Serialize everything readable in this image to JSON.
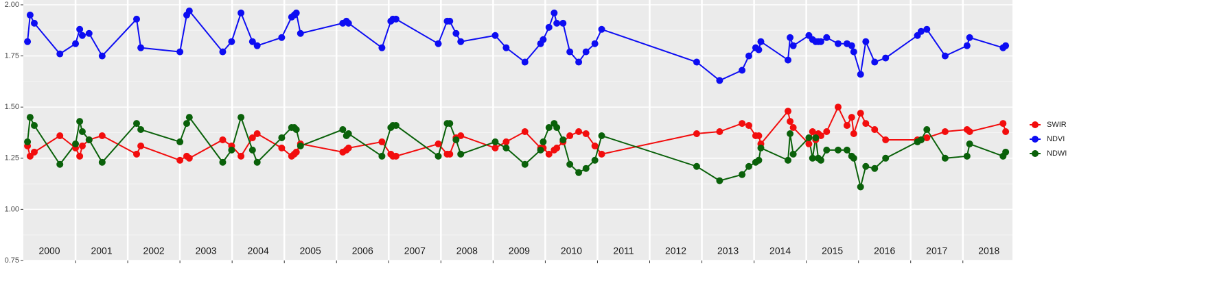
{
  "chart_data": {
    "type": "line",
    "xlim": [
      2000,
      2018.95
    ],
    "ylim": [
      0.75,
      2.0
    ],
    "yticks": [
      {
        "value": 0.75,
        "label": "0.75"
      },
      {
        "value": 1,
        "label": "1.00"
      },
      {
        "value": 1.25,
        "label": "1.25"
      },
      {
        "value": 1.5,
        "label": "1.50"
      },
      {
        "value": 1.75,
        "label": "1.75"
      },
      {
        "value": 2,
        "label": "2.00"
      }
    ],
    "xticks": [
      {
        "value": 2000.5,
        "label": "2000"
      },
      {
        "value": 2001.5,
        "label": "2001"
      },
      {
        "value": 2002.5,
        "label": "2002"
      },
      {
        "value": 2003.5,
        "label": "2003"
      },
      {
        "value": 2004.5,
        "label": "2004"
      },
      {
        "value": 2005.5,
        "label": "2005"
      },
      {
        "value": 2006.5,
        "label": "2006"
      },
      {
        "value": 2007.5,
        "label": "2007"
      },
      {
        "value": 2008.5,
        "label": "2008"
      },
      {
        "value": 2009.5,
        "label": "2009"
      },
      {
        "value": 2010.5,
        "label": "2010"
      },
      {
        "value": 2011.5,
        "label": "2011"
      },
      {
        "value": 2012.5,
        "label": "2012"
      },
      {
        "value": 2013.5,
        "label": "2013"
      },
      {
        "value": 2014.5,
        "label": "2014"
      },
      {
        "value": 2015.5,
        "label": "2015"
      },
      {
        "value": 2016.5,
        "label": "2016"
      },
      {
        "value": 2017.5,
        "label": "2017"
      },
      {
        "value": 2018.5,
        "label": "2018"
      }
    ],
    "year_breaks": [
      2001,
      2002,
      2003,
      2004,
      2005,
      2006,
      2007,
      2008,
      2009,
      2010,
      2011,
      2012,
      2013,
      2014,
      2015,
      2016,
      2017,
      2018
    ],
    "grid": true,
    "legend": "right",
    "x": [
      2000.08,
      2000.13,
      2000.21,
      2000.7,
      2001.0,
      2001.08,
      2001.13,
      2001.26,
      2001.51,
      2002.17,
      2002.25,
      2003.0,
      2003.13,
      2003.18,
      2003.82,
      2003.99,
      2004.17,
      2004.39,
      2004.48,
      2004.95,
      2005.14,
      2005.19,
      2005.23,
      2005.31,
      2006.12,
      2006.19,
      2006.23,
      2006.87,
      2007.04,
      2007.08,
      2007.14,
      2007.95,
      2008.12,
      2008.17,
      2008.29,
      2008.38,
      2009.04,
      2009.25,
      2009.61,
      2009.91,
      2009.96,
      2010.07,
      2010.17,
      2010.22,
      2010.34,
      2010.47,
      2010.64,
      2010.78,
      2010.95,
      2011.08,
      2012.9,
      2013.34,
      2013.77,
      2013.9,
      2014.03,
      2014.09,
      2014.13,
      2014.65,
      2014.69,
      2014.75,
      2015.05,
      2015.12,
      2015.18,
      2015.23,
      2015.28,
      2015.39,
      2015.61,
      2015.78,
      2015.87,
      2015.91,
      2016.04,
      2016.14,
      2016.31,
      2016.52,
      2017.13,
      2017.2,
      2017.31,
      2017.66,
      2018.08,
      2018.13,
      2018.77,
      2018.82
    ],
    "series": [
      {
        "name": "SWIR",
        "color": "#f20d0d",
        "values": [
          1.31,
          1.26,
          1.28,
          1.36,
          1.3,
          1.26,
          1.31,
          1.34,
          1.36,
          1.27,
          1.31,
          1.24,
          1.26,
          1.25,
          1.34,
          1.31,
          1.26,
          1.35,
          1.37,
          1.3,
          1.26,
          1.27,
          1.28,
          1.32,
          1.28,
          1.29,
          1.3,
          1.33,
          1.27,
          1.26,
          1.26,
          1.32,
          1.27,
          1.27,
          1.35,
          1.36,
          1.3,
          1.33,
          1.38,
          1.3,
          1.3,
          1.27,
          1.29,
          1.3,
          1.33,
          1.36,
          1.38,
          1.37,
          1.31,
          1.27,
          1.37,
          1.38,
          1.42,
          1.41,
          1.36,
          1.36,
          1.32,
          1.48,
          1.43,
          1.4,
          1.32,
          1.38,
          1.34,
          1.37,
          1.36,
          1.38,
          1.5,
          1.41,
          1.45,
          1.37,
          1.47,
          1.42,
          1.39,
          1.34,
          1.34,
          1.34,
          1.35,
          1.38,
          1.39,
          1.38,
          1.42,
          1.38
        ]
      },
      {
        "name": "NDVI",
        "color": "#0d0df2",
        "values": [
          1.82,
          1.95,
          1.91,
          1.76,
          1.81,
          1.88,
          1.85,
          1.86,
          1.75,
          1.93,
          1.79,
          1.77,
          1.95,
          1.97,
          1.77,
          1.82,
          1.96,
          1.82,
          1.8,
          1.84,
          1.94,
          1.95,
          1.96,
          1.86,
          1.91,
          1.92,
          1.91,
          1.79,
          1.92,
          1.93,
          1.93,
          1.81,
          1.92,
          1.92,
          1.86,
          1.82,
          1.85,
          1.79,
          1.72,
          1.81,
          1.83,
          1.89,
          1.96,
          1.91,
          1.91,
          1.77,
          1.72,
          1.77,
          1.81,
          1.88,
          1.72,
          1.63,
          1.68,
          1.75,
          1.79,
          1.78,
          1.82,
          1.73,
          1.84,
          1.8,
          1.85,
          1.83,
          1.82,
          1.82,
          1.82,
          1.84,
          1.81,
          1.81,
          1.8,
          1.77,
          1.66,
          1.82,
          1.72,
          1.74,
          1.85,
          1.87,
          1.88,
          1.75,
          1.8,
          1.84,
          1.79,
          1.8
        ]
      },
      {
        "name": "NDWI",
        "color": "#0a610a",
        "values": [
          1.33,
          1.45,
          1.41,
          1.22,
          1.32,
          1.43,
          1.38,
          1.34,
          1.23,
          1.42,
          1.39,
          1.33,
          1.42,
          1.45,
          1.23,
          1.29,
          1.45,
          1.29,
          1.23,
          1.35,
          1.4,
          1.4,
          1.39,
          1.31,
          1.39,
          1.36,
          1.37,
          1.26,
          1.4,
          1.41,
          1.41,
          1.26,
          1.42,
          1.42,
          1.34,
          1.27,
          1.33,
          1.3,
          1.22,
          1.29,
          1.33,
          1.4,
          1.42,
          1.4,
          1.34,
          1.22,
          1.18,
          1.2,
          1.24,
          1.36,
          1.21,
          1.14,
          1.17,
          1.21,
          1.23,
          1.24,
          1.3,
          1.24,
          1.37,
          1.27,
          1.35,
          1.25,
          1.35,
          1.25,
          1.24,
          1.29,
          1.29,
          1.29,
          1.26,
          1.25,
          1.11,
          1.21,
          1.2,
          1.25,
          1.33,
          1.34,
          1.39,
          1.25,
          1.26,
          1.32,
          1.26,
          1.28
        ]
      }
    ]
  }
}
